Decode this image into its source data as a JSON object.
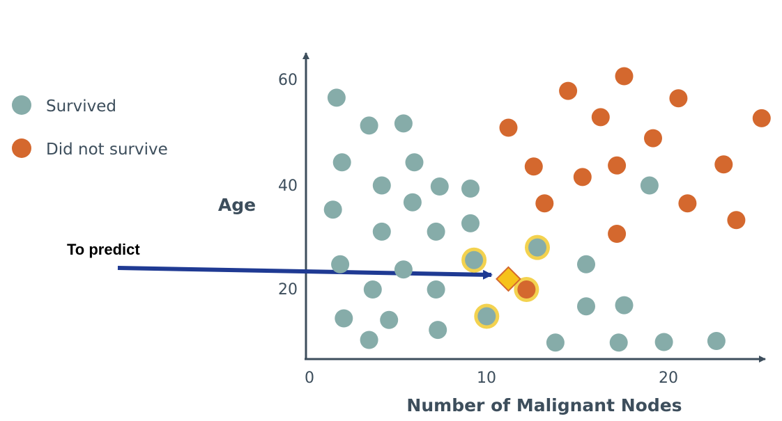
{
  "chart_data": {
    "type": "scatter",
    "xlabel": "Number of Malignant Nodes",
    "ylabel": "Age",
    "xlim": [
      0,
      25
    ],
    "ylim": [
      5,
      65
    ],
    "x_ticks": [
      "0",
      "10",
      "20"
    ],
    "y_ticks": [
      "20",
      "40",
      "60"
    ],
    "grid": false,
    "legend_position": "left",
    "colors": {
      "survived": "#86aca9",
      "did_not_survive": "#d4682e",
      "highlight_ring": "#f3d24f",
      "query_point": "#f6c21a",
      "arrow": "#1f3a93",
      "axis": "#3d4e5c"
    },
    "series": [
      {
        "name": "Survived",
        "points": [
          [
            1.5,
            56.5
          ],
          [
            3.3,
            51.2
          ],
          [
            5.2,
            51.6
          ],
          [
            1.8,
            44.2
          ],
          [
            5.8,
            44.2
          ],
          [
            4.0,
            39.8
          ],
          [
            7.2,
            39.6
          ],
          [
            8.9,
            39.2
          ],
          [
            1.3,
            35.2
          ],
          [
            5.7,
            36.6
          ],
          [
            4.0,
            31.0
          ],
          [
            7.0,
            31.0
          ],
          [
            8.9,
            32.6
          ],
          [
            1.7,
            24.8
          ],
          [
            5.2,
            23.8
          ],
          [
            3.5,
            20.0
          ],
          [
            7.0,
            20.0
          ],
          [
            1.9,
            14.5
          ],
          [
            4.4,
            14.2
          ],
          [
            7.1,
            12.3
          ],
          [
            3.3,
            10.4
          ],
          [
            9.1,
            25.6
          ],
          [
            12.6,
            28.0
          ],
          [
            9.8,
            14.9
          ],
          [
            15.3,
            24.8
          ],
          [
            15.3,
            16.8
          ],
          [
            17.4,
            17.0
          ],
          [
            13.6,
            9.9
          ],
          [
            17.1,
            9.9
          ],
          [
            19.6,
            10.0
          ],
          [
            22.5,
            10.2
          ],
          [
            18.8,
            39.8
          ]
        ]
      },
      {
        "name": "Did not survive",
        "points": [
          [
            17.4,
            60.6
          ],
          [
            14.3,
            57.8
          ],
          [
            20.4,
            56.4
          ],
          [
            11.0,
            50.8
          ],
          [
            16.1,
            52.8
          ],
          [
            19.0,
            48.8
          ],
          [
            25.0,
            52.6
          ],
          [
            12.4,
            43.4
          ],
          [
            15.1,
            41.4
          ],
          [
            17.0,
            43.6
          ],
          [
            22.9,
            43.8
          ],
          [
            13.0,
            36.4
          ],
          [
            20.9,
            36.4
          ],
          [
            23.6,
            33.2
          ],
          [
            17.0,
            30.6
          ],
          [
            12.0,
            20.0
          ]
        ]
      }
    ],
    "highlighted_neighbors": [
      [
        9.1,
        25.6
      ],
      [
        12.6,
        28.0
      ],
      [
        9.8,
        14.9
      ],
      [
        12.0,
        20.0
      ]
    ],
    "query_point": {
      "x": 11.0,
      "y": 22.0
    },
    "annotation": "To predict"
  }
}
